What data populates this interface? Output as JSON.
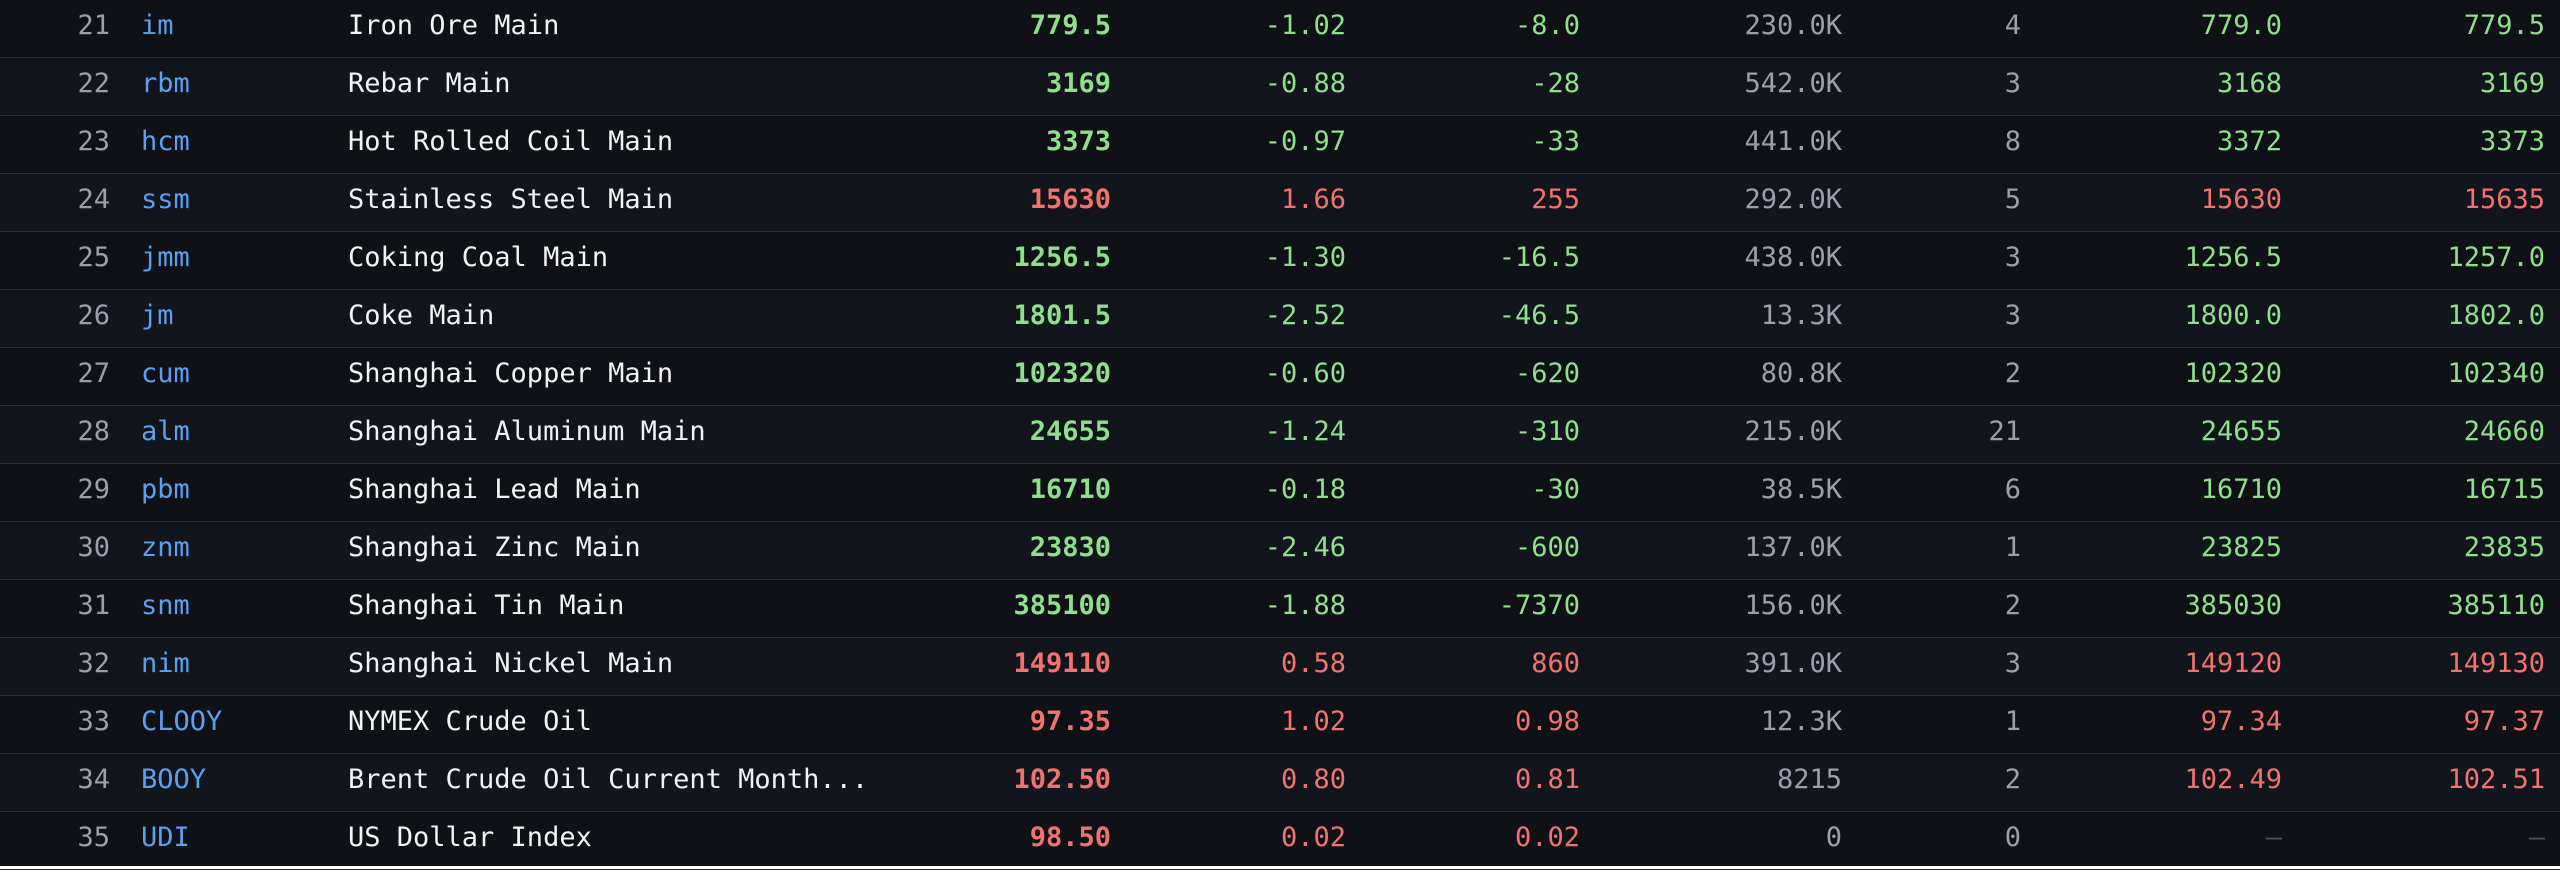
{
  "colors": {
    "background": "#0f1117",
    "down": "#8fe08a",
    "up": "#f0736e",
    "code": "#5aa0f0",
    "muted": "#9aa0aa"
  },
  "rows": [
    {
      "idx": "21",
      "code": "im",
      "name": "Iron Ore Main",
      "last": "779.5",
      "pct": "-1.02",
      "chg": "-8.0",
      "vol": "230.0K",
      "cnt": "4",
      "bid": "779.0",
      "ask": "779.5",
      "dir": "down",
      "bid_dir": "down",
      "ask_dir": "down"
    },
    {
      "idx": "22",
      "code": "rbm",
      "name": "Rebar Main",
      "last": "3169",
      "pct": "-0.88",
      "chg": "-28",
      "vol": "542.0K",
      "cnt": "3",
      "bid": "3168",
      "ask": "3169",
      "dir": "down",
      "bid_dir": "down",
      "ask_dir": "down"
    },
    {
      "idx": "23",
      "code": "hcm",
      "name": "Hot Rolled Coil Main",
      "last": "3373",
      "pct": "-0.97",
      "chg": "-33",
      "vol": "441.0K",
      "cnt": "8",
      "bid": "3372",
      "ask": "3373",
      "dir": "down",
      "bid_dir": "down",
      "ask_dir": "down"
    },
    {
      "idx": "24",
      "code": "ssm",
      "name": "Stainless Steel Main",
      "last": "15630",
      "pct": "1.66",
      "chg": "255",
      "vol": "292.0K",
      "cnt": "5",
      "bid": "15630",
      "ask": "15635",
      "dir": "up",
      "bid_dir": "up",
      "ask_dir": "up"
    },
    {
      "idx": "25",
      "code": "jmm",
      "name": "Coking Coal Main",
      "last": "1256.5",
      "pct": "-1.30",
      "chg": "-16.5",
      "vol": "438.0K",
      "cnt": "3",
      "bid": "1256.5",
      "ask": "1257.0",
      "dir": "down",
      "bid_dir": "down",
      "ask_dir": "down"
    },
    {
      "idx": "26",
      "code": "jm",
      "name": "Coke Main",
      "last": "1801.5",
      "pct": "-2.52",
      "chg": "-46.5",
      "vol": "13.3K",
      "cnt": "3",
      "bid": "1800.0",
      "ask": "1802.0",
      "dir": "down",
      "bid_dir": "down",
      "ask_dir": "down"
    },
    {
      "idx": "27",
      "code": "cum",
      "name": "Shanghai Copper Main",
      "last": "102320",
      "pct": "-0.60",
      "chg": "-620",
      "vol": "80.8K",
      "cnt": "2",
      "bid": "102320",
      "ask": "102340",
      "dir": "down",
      "bid_dir": "down",
      "ask_dir": "down"
    },
    {
      "idx": "28",
      "code": "alm",
      "name": "Shanghai Aluminum Main",
      "last": "24655",
      "pct": "-1.24",
      "chg": "-310",
      "vol": "215.0K",
      "cnt": "21",
      "bid": "24655",
      "ask": "24660",
      "dir": "down",
      "bid_dir": "down",
      "ask_dir": "down"
    },
    {
      "idx": "29",
      "code": "pbm",
      "name": "Shanghai Lead Main",
      "last": "16710",
      "pct": "-0.18",
      "chg": "-30",
      "vol": "38.5K",
      "cnt": "6",
      "bid": "16710",
      "ask": "16715",
      "dir": "down",
      "bid_dir": "down",
      "ask_dir": "down"
    },
    {
      "idx": "30",
      "code": "znm",
      "name": "Shanghai Zinc Main",
      "last": "23830",
      "pct": "-2.46",
      "chg": "-600",
      "vol": "137.0K",
      "cnt": "1",
      "bid": "23825",
      "ask": "23835",
      "dir": "down",
      "bid_dir": "down",
      "ask_dir": "down"
    },
    {
      "idx": "31",
      "code": "snm",
      "name": "Shanghai Tin Main",
      "last": "385100",
      "pct": "-1.88",
      "chg": "-7370",
      "vol": "156.0K",
      "cnt": "2",
      "bid": "385030",
      "ask": "385110",
      "dir": "down",
      "bid_dir": "down",
      "ask_dir": "down"
    },
    {
      "idx": "32",
      "code": "nim",
      "name": "Shanghai Nickel Main",
      "last": "149110",
      "pct": "0.58",
      "chg": "860",
      "vol": "391.0K",
      "cnt": "3",
      "bid": "149120",
      "ask": "149130",
      "dir": "up",
      "bid_dir": "up",
      "ask_dir": "up"
    },
    {
      "idx": "33",
      "code": "CLOOY",
      "name": "NYMEX Crude Oil",
      "last": "97.35",
      "pct": "1.02",
      "chg": "0.98",
      "vol": "12.3K",
      "cnt": "1",
      "bid": "97.34",
      "ask": "97.37",
      "dir": "up",
      "bid_dir": "up",
      "ask_dir": "up"
    },
    {
      "idx": "34",
      "code": "BOOY",
      "name": "Brent Crude Oil Current Month...",
      "last": "102.50",
      "pct": "0.80",
      "chg": "0.81",
      "vol": "8215",
      "cnt": "2",
      "bid": "102.49",
      "ask": "102.51",
      "dir": "up",
      "bid_dir": "up",
      "ask_dir": "up"
    },
    {
      "idx": "35",
      "code": "UDI",
      "name": "US Dollar Index",
      "last": "98.50",
      "pct": "0.02",
      "chg": "0.02",
      "vol": "0",
      "cnt": "0",
      "bid": "—",
      "ask": "—",
      "dir": "up",
      "bid_dir": "none",
      "ask_dir": "none"
    }
  ]
}
